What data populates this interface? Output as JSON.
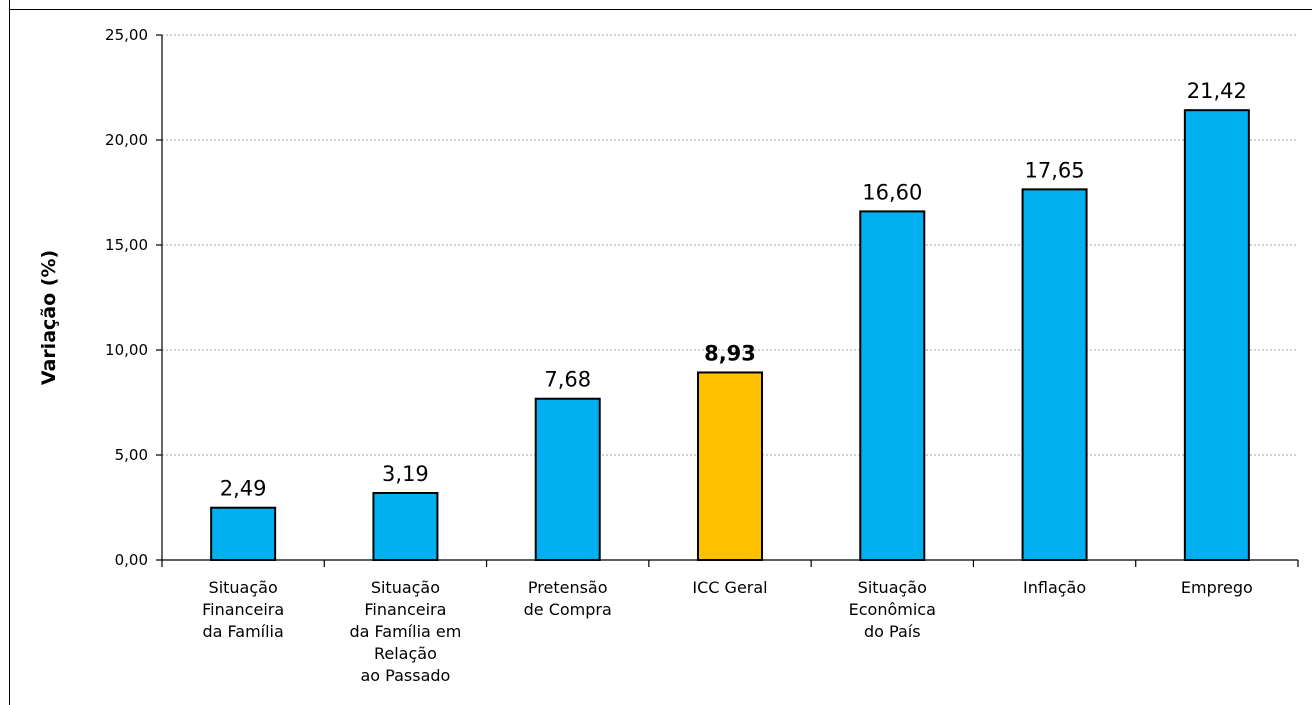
{
  "chart_data": {
    "type": "bar",
    "title": "",
    "xlabel": "",
    "ylabel": "Variação (%)",
    "ylim": [
      0,
      25
    ],
    "yticks": [
      "0,00",
      "5,00",
      "10,00",
      "15,00",
      "20,00",
      "25,00"
    ],
    "grid": true,
    "categories": [
      [
        "Situação",
        "Financeira",
        "da Família"
      ],
      [
        "Situação",
        "Financeira",
        "da Família em",
        "Relação",
        "ao Passado"
      ],
      [
        "Pretensão",
        "de Compra"
      ],
      [
        "ICC Geral"
      ],
      [
        "Situação",
        "Econômica",
        "do País"
      ],
      [
        "Inflação"
      ],
      [
        "Emprego"
      ]
    ],
    "values": [
      2.49,
      3.19,
      7.68,
      8.93,
      16.6,
      17.65,
      21.42
    ],
    "value_labels": [
      "2,49",
      "3,19",
      "7,68",
      "8,93",
      "16,60",
      "17,65",
      "21,42"
    ],
    "highlight_index": 3,
    "colors": {
      "bar": "#00b0f0",
      "highlight": "#ffc000",
      "border": "#000000"
    }
  }
}
